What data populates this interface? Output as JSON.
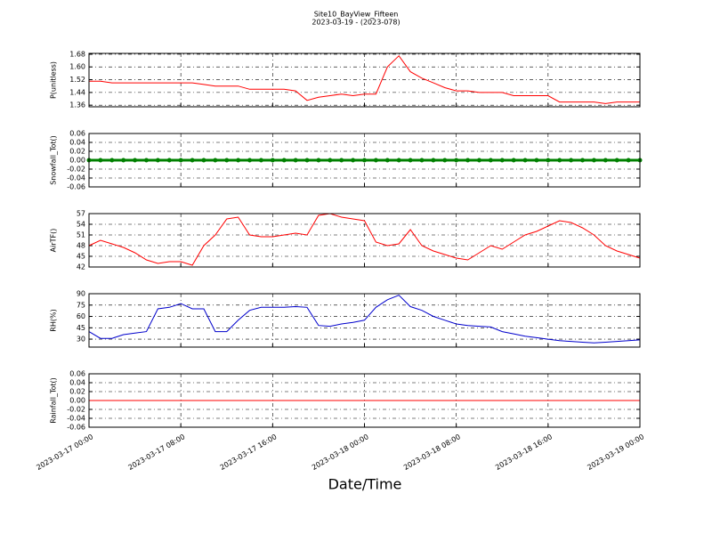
{
  "title": "Site10_BayView_Fifteen",
  "subtitle": "2023-03-19 - (2023-078)",
  "xlabel": "Date/Time",
  "xlim": [
    "2023-03-17 00:00",
    "2023-03-19 00:00"
  ],
  "xticks": [
    "2023-03-17 00:00",
    "2023-03-17 08:00",
    "2023-03-17 16:00",
    "2023-03-18 00:00",
    "2023-03-18 08:00",
    "2023-03-18 16:00",
    "2023-03-19 00:00"
  ],
  "x": [
    "2023-03-17 00:00",
    "2023-03-17 01:00",
    "2023-03-17 02:00",
    "2023-03-17 03:00",
    "2023-03-17 04:00",
    "2023-03-17 05:00",
    "2023-03-17 06:00",
    "2023-03-17 07:00",
    "2023-03-17 08:00",
    "2023-03-17 09:00",
    "2023-03-17 10:00",
    "2023-03-17 11:00",
    "2023-03-17 12:00",
    "2023-03-17 13:00",
    "2023-03-17 14:00",
    "2023-03-17 15:00",
    "2023-03-17 16:00",
    "2023-03-17 17:00",
    "2023-03-17 18:00",
    "2023-03-17 19:00",
    "2023-03-17 20:00",
    "2023-03-17 21:00",
    "2023-03-17 22:00",
    "2023-03-17 23:00",
    "2023-03-18 00:00",
    "2023-03-18 01:00",
    "2023-03-18 02:00",
    "2023-03-18 03:00",
    "2023-03-18 04:00",
    "2023-03-18 05:00",
    "2023-03-18 06:00",
    "2023-03-18 07:00",
    "2023-03-18 08:00",
    "2023-03-18 09:00",
    "2023-03-18 10:00",
    "2023-03-18 11:00",
    "2023-03-18 12:00",
    "2023-03-18 13:00",
    "2023-03-18 14:00",
    "2023-03-18 15:00",
    "2023-03-18 16:00",
    "2023-03-18 17:00",
    "2023-03-18 18:00",
    "2023-03-18 19:00",
    "2023-03-18 20:00",
    "2023-03-18 21:00",
    "2023-03-18 22:00",
    "2023-03-18 23:00",
    "2023-03-19 00:00"
  ],
  "chart_data": [
    {
      "type": "line",
      "ylabel": "P(unitless)",
      "color": "#ff0000",
      "grid": true,
      "ylim": [
        1.35,
        1.685
      ],
      "yticks": [
        1.36,
        1.44,
        1.52,
        {
          "value": 1.6,
          "label": "1.60"
        },
        1.68
      ],
      "values": [
        1.51,
        1.51,
        1.5,
        1.5,
        1.5,
        1.5,
        1.5,
        1.5,
        1.5,
        1.5,
        1.49,
        1.48,
        1.48,
        1.48,
        1.46,
        1.46,
        1.46,
        1.46,
        1.45,
        1.39,
        1.41,
        1.42,
        1.43,
        1.42,
        1.43,
        1.43,
        1.6,
        1.67,
        1.57,
        1.53,
        1.5,
        1.47,
        1.45,
        1.45,
        1.44,
        1.44,
        1.44,
        1.42,
        1.42,
        1.42,
        1.42,
        1.38,
        1.38,
        1.38,
        1.38,
        1.37,
        1.38,
        1.38,
        1.38
      ]
    },
    {
      "type": "line",
      "ylabel": "Snowfall_Tot()",
      "color": "#008000",
      "markers": true,
      "grid": true,
      "ylim": [
        -0.06,
        0.06
      ],
      "yticks": [
        -0.06,
        -0.04,
        -0.02,
        {
          "value": 0,
          "label": "0.00"
        },
        0.02,
        0.04,
        0.06
      ],
      "values": [
        0,
        0,
        0,
        0,
        0,
        0,
        0,
        0,
        0,
        0,
        0,
        0,
        0,
        0,
        0,
        0,
        0,
        0,
        0,
        0,
        0,
        0,
        0,
        0,
        0,
        0,
        0,
        0,
        0,
        0,
        0,
        0,
        0,
        0,
        0,
        0,
        0,
        0,
        0,
        0,
        0,
        0,
        0,
        0,
        0,
        0,
        0,
        0,
        0
      ]
    },
    {
      "type": "line",
      "ylabel": "AirTF()",
      "color": "#ff0000",
      "grid": true,
      "ylim": [
        42,
        57
      ],
      "yticks": [
        42,
        45,
        48,
        51,
        54,
        57
      ],
      "values": [
        48,
        49.5,
        48.5,
        47.5,
        46,
        44,
        43,
        43.5,
        43.5,
        42.5,
        48,
        51,
        55.5,
        56,
        51,
        50.5,
        50.5,
        51,
        51.5,
        51,
        56.5,
        57,
        56,
        55.5,
        55,
        49,
        48,
        48.5,
        52.5,
        48,
        46.5,
        45.5,
        44.5,
        44,
        46,
        48,
        47,
        49,
        51,
        52,
        53.5,
        55,
        54.5,
        53,
        51,
        48,
        46.5,
        45.5,
        44.5
      ]
    },
    {
      "type": "line",
      "ylabel": "RH(%)",
      "color": "#0000cc",
      "grid": true,
      "ylim": [
        19.5,
        90
      ],
      "yticks": [
        30,
        45,
        60,
        75,
        90
      ],
      "values": [
        40,
        31,
        31,
        36,
        38,
        40,
        70,
        72,
        77,
        70,
        70,
        40,
        40,
        55,
        68,
        72,
        72,
        72,
        73,
        72,
        48,
        47,
        50,
        52,
        55,
        72,
        82,
        88,
        73,
        68,
        60,
        55,
        50,
        48,
        47,
        46,
        40,
        37,
        34,
        32,
        30,
        28,
        27,
        26,
        25,
        26,
        27,
        28,
        29
      ]
    },
    {
      "type": "line",
      "ylabel": "Rainfall_Tot()",
      "color": "#ff0000",
      "grid": true,
      "ylim": [
        -0.06,
        0.06
      ],
      "yticks": [
        -0.06,
        -0.04,
        -0.02,
        {
          "value": 0,
          "label": "0.00"
        },
        0.02,
        0.04,
        0.06
      ],
      "values": [
        0,
        0,
        0,
        0,
        0,
        0,
        0,
        0,
        0,
        0,
        0,
        0,
        0,
        0,
        0,
        0,
        0,
        0,
        0,
        0,
        0,
        0,
        0,
        0,
        0,
        0,
        0,
        0,
        0,
        0,
        0,
        0,
        0,
        0,
        0,
        0,
        0,
        0,
        0,
        0,
        0,
        0,
        0,
        0,
        0,
        0,
        0,
        0,
        0
      ]
    }
  ]
}
